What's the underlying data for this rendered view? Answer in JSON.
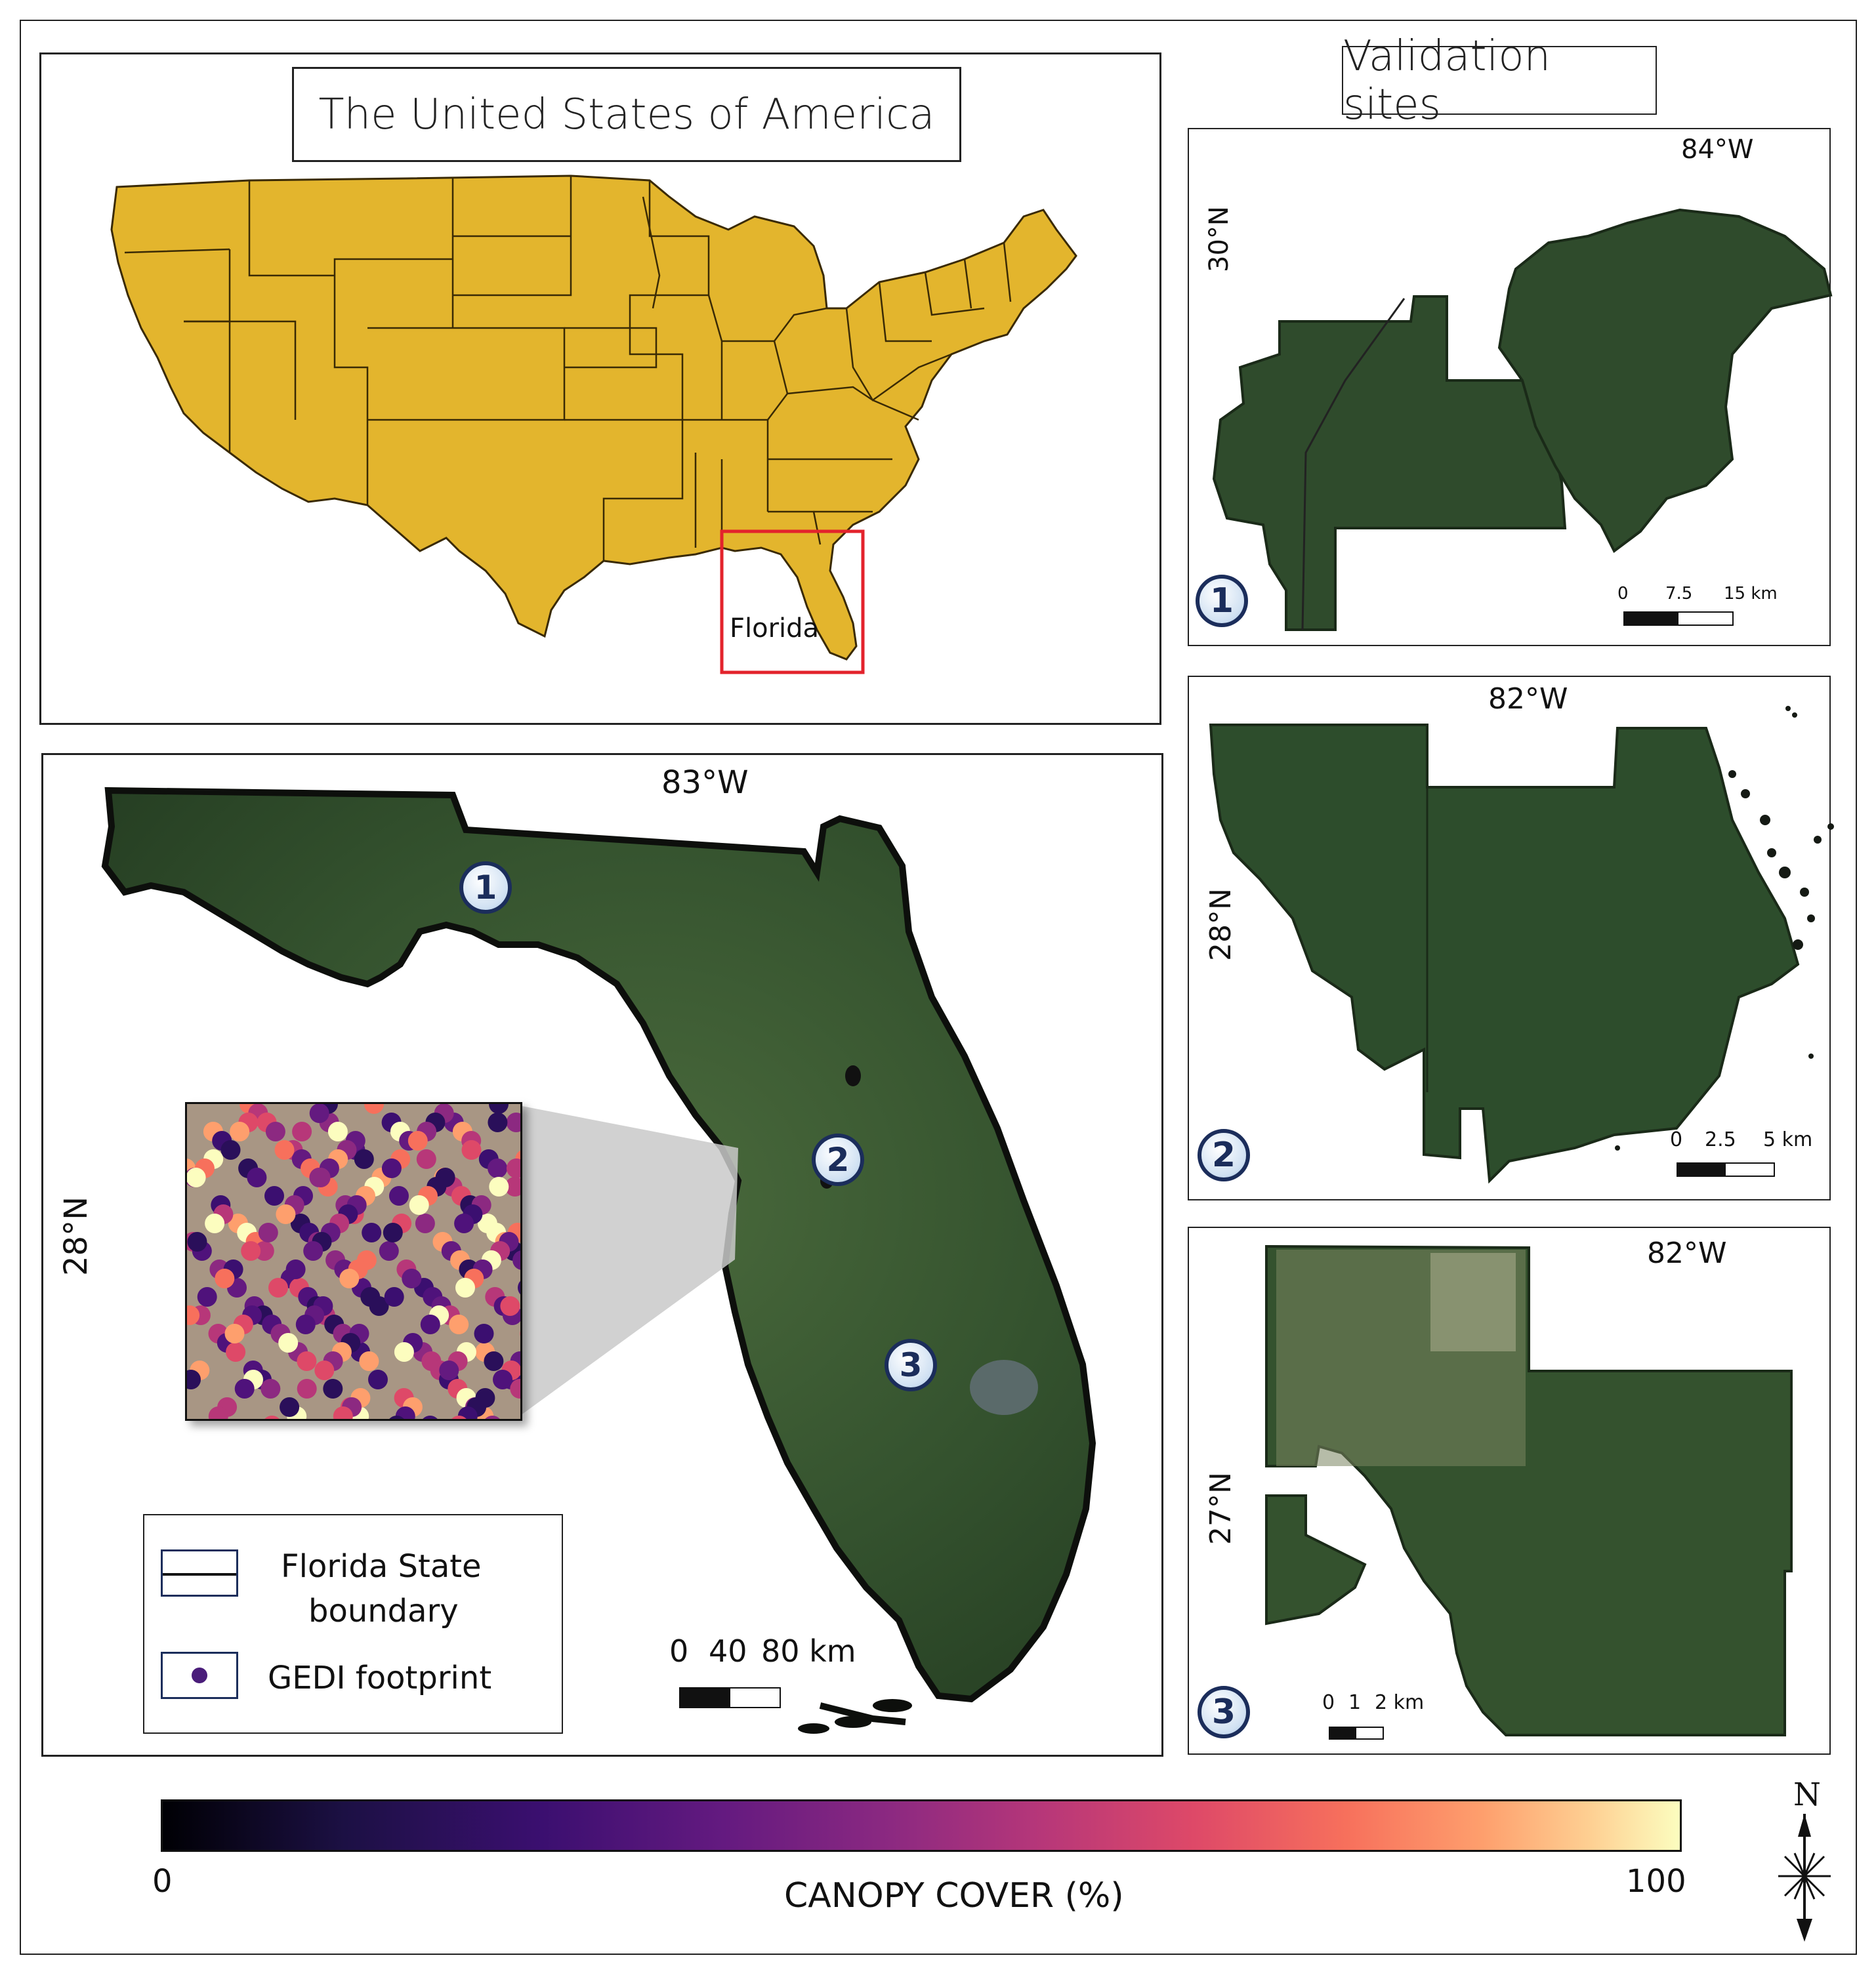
{
  "usa_panel": {
    "title": "The United States of America",
    "highlight_label": "Florida",
    "fill_color": "#e3b52d",
    "highlight_color": "#e3232c"
  },
  "validation_title": "Validation sites",
  "florida_panel": {
    "longitude_label": "83°W",
    "latitude_label": "28°N",
    "site_markers": [
      "1",
      "2",
      "3"
    ],
    "legend": {
      "boundary_label_line1": "Florida State",
      "boundary_label_line2": "boundary",
      "footprint_label": "GEDI footprint"
    },
    "scale": {
      "labels": [
        "0",
        "40",
        "80 km"
      ]
    }
  },
  "sites": [
    {
      "number": "1",
      "longitude_label": "84°W",
      "latitude_label": "30°N",
      "scale_labels": [
        "0",
        "7.5",
        "15 km"
      ]
    },
    {
      "number": "2",
      "longitude_label": "82°W",
      "latitude_label": "28°N",
      "scale_labels": [
        "0",
        "2.5",
        "5 km"
      ]
    },
    {
      "number": "3",
      "longitude_label": "82°W",
      "latitude_label": "27°N",
      "scale_labels": [
        "0",
        "1",
        "2 km"
      ]
    }
  ],
  "colorbar": {
    "title": "CANOPY COVER (%)",
    "min_label": "0",
    "max_label": "100",
    "colormap": "magma"
  },
  "north_arrow": {
    "label": "N"
  }
}
